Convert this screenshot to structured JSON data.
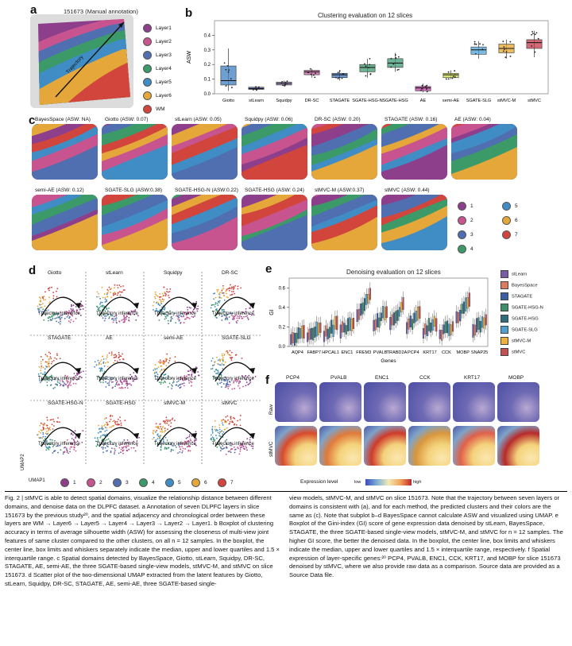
{
  "panel_a": {
    "label": "a",
    "title": "151673 (Manual annotation)",
    "trajectory_label": "Trajectory",
    "legend": [
      {
        "name": "Layer1",
        "color": "#8e3f8c"
      },
      {
        "name": "Layer2",
        "color": "#c7548e"
      },
      {
        "name": "Layer3",
        "color": "#4f6fb0"
      },
      {
        "name": "Layer4",
        "color": "#3b9a68"
      },
      {
        "name": "Layer5",
        "color": "#3f8dc4"
      },
      {
        "name": "Layer6",
        "color": "#e5a73a"
      },
      {
        "name": "WM",
        "color": "#d1453d"
      }
    ]
  },
  "panel_b": {
    "label": "b",
    "chart_data": {
      "type": "box",
      "title": "Clustering evaluation on 12 slices",
      "ylabel": "ASW",
      "ylim": [
        0,
        0.5
      ],
      "yticks": [
        "0.0",
        "0.1",
        "0.2",
        "0.3",
        "0.4"
      ],
      "categories": [
        "Giotto",
        "stLearn",
        "Squidpy",
        "DR-SC",
        "STAGATE",
        "SGATE-HSG-N",
        "SGATE-HSG",
        "AE",
        "semi-AE",
        "SGATE-SLG",
        "stMVC-M",
        "stMVC"
      ],
      "colors": [
        "#3f7fc1",
        "#3a4fa3",
        "#9b86cf",
        "#c05a9a",
        "#3e74bf",
        "#3e9a6c",
        "#3d9a74",
        "#c33fa0",
        "#cfe04a",
        "#4fa3d6",
        "#e6a531",
        "#c2374a"
      ],
      "boxes": [
        {
          "min": 0.02,
          "q1": 0.06,
          "median": 0.09,
          "q3": 0.19,
          "max": 0.31
        },
        {
          "min": 0.02,
          "q1": 0.03,
          "median": 0.035,
          "q3": 0.045,
          "max": 0.05
        },
        {
          "min": 0.05,
          "q1": 0.06,
          "median": 0.07,
          "q3": 0.08,
          "max": 0.09
        },
        {
          "min": 0.11,
          "q1": 0.13,
          "median": 0.15,
          "q3": 0.16,
          "max": 0.17
        },
        {
          "min": 0.09,
          "q1": 0.11,
          "median": 0.13,
          "q3": 0.14,
          "max": 0.16
        },
        {
          "min": 0.11,
          "q1": 0.15,
          "median": 0.18,
          "q3": 0.2,
          "max": 0.24
        },
        {
          "min": 0.15,
          "q1": 0.18,
          "median": 0.21,
          "q3": 0.24,
          "max": 0.28
        },
        {
          "min": 0.01,
          "q1": 0.02,
          "median": 0.04,
          "q3": 0.05,
          "max": 0.07
        },
        {
          "min": 0.1,
          "q1": 0.11,
          "median": 0.13,
          "q3": 0.14,
          "max": 0.16
        },
        {
          "min": 0.24,
          "q1": 0.27,
          "median": 0.3,
          "q3": 0.32,
          "max": 0.36
        },
        {
          "min": 0.24,
          "q1": 0.28,
          "median": 0.31,
          "q3": 0.34,
          "max": 0.37
        },
        {
          "min": 0.25,
          "q1": 0.31,
          "median": 0.35,
          "q3": 0.37,
          "max": 0.43
        }
      ]
    }
  },
  "panel_c": {
    "label": "c",
    "tiles_row1": [
      "BayesSpace (ASW: NA)",
      "Giotto (ASW: 0.07)",
      "stLearn (ASW: 0.05)",
      "Squidpy (ASW: 0.06)",
      "DR-SC (ASW: 0.20)",
      "STAGATE (ASW: 0.16)",
      "AE (ASW: 0.04)"
    ],
    "tiles_row2": [
      "semi-AE (ASW: 0.12)",
      "SGATE-SLG (ASW:0.38)",
      "SGATE-HSG-N (ASW:0.22)",
      "SGATE-HSG (ASW: 0.24)",
      "stMVC-M (ASW:0.37)",
      "stMVC (ASW: 0.44)"
    ],
    "legend": [
      {
        "name": "1",
        "color": "#8e3f8c"
      },
      {
        "name": "2",
        "color": "#c7548e"
      },
      {
        "name": "3",
        "color": "#4f6fb0"
      },
      {
        "name": "4",
        "color": "#3b9a68"
      },
      {
        "name": "5",
        "color": "#3f8dc4"
      },
      {
        "name": "6",
        "color": "#e5a73a"
      },
      {
        "name": "7",
        "color": "#d1453d"
      }
    ]
  },
  "panel_d": {
    "label": "d",
    "methods": [
      "Giotto",
      "stLearn",
      "Squidpy",
      "DR-SC",
      "STAGATE",
      "AE",
      "semi-AE",
      "SGATE-SLG",
      "SGATE-HSG-N",
      "SGATE-HSG",
      "stMVC-M",
      "stMVC"
    ],
    "trajectory_label": "Trajectory inference",
    "axis_x": "UMAP1",
    "axis_y": "UMAP2",
    "legend": [
      "1",
      "2",
      "3",
      "4",
      "5",
      "6",
      "7"
    ]
  },
  "panel_e": {
    "label": "e",
    "chart_data": {
      "type": "box",
      "title": "Denoising evaluation on 12 slices",
      "ylabel": "GI",
      "xlabel": "Genes",
      "yticks": [
        "0.0",
        "0.2",
        "0.4",
        "0.6"
      ],
      "ylim": [
        0,
        0.7
      ],
      "genes": [
        "AQP4",
        "FABP7",
        "HPCAL1",
        "ENC1",
        "FREM3",
        "PVALB",
        "TRABD2A",
        "PCP4",
        "KRT17",
        "CCK",
        "MOBP",
        "SNAP25"
      ],
      "methods": [
        "stLearn",
        "BayesSpace",
        "STAGATE",
        "SGATE-HSG-N",
        "SGATE-HSG",
        "SGATE-SLG",
        "stMVC-M",
        "stMVC"
      ],
      "colors": [
        "#7b5aa6",
        "#e07a5f",
        "#3a5fa8",
        "#3d8f6a",
        "#2f6d7e",
        "#4fa0cf",
        "#f0b13a",
        "#c44e52"
      ],
      "gene_medians": [
        0.12,
        0.15,
        0.18,
        0.22,
        0.45,
        0.3,
        0.35,
        0.28,
        0.2,
        0.18,
        0.4,
        0.22
      ]
    }
  },
  "panel_f": {
    "label": "f",
    "genes": [
      "PCP4",
      "PVALB",
      "ENC1",
      "CCK",
      "KRT17",
      "MOBP"
    ],
    "row_raw": "Raw",
    "row_stmvc": "stMVC",
    "legend_title": "Expression level",
    "legend_low": "low",
    "legend_high": "high"
  },
  "caption": {
    "col1": "Fig. 2 | stMVC is able to detect spatial domains, visualize the relationship distance between different domains, and denoise data on the DLPFC dataset. a Annotation of seven DLPFC layers in slice 151673 by the previous study²⁰, and the spatial adjacency and chronological order between these layers are WM → Layer6 → Layer5 → Layer4 → Layer3 → Layer2 → Layer1. b Boxplot of clustering accuracy in terms of average silhouette width (ASW) for assessing the closeness of multi-view joint features of same cluster compared to the other clusters, on all n = 12 samples. In the boxplot, the center line, box limits and whiskers separately indicate the median, upper and lower quartiles and 1.5 × interquartile range. c Spatial domains detected by BayesSpace, Giotto, stLearn, Squidpy, DR-SC, STAGATE, AE, semi-AE, the three SGATE-based single-view models, stMVC-M, and stMVC on slice 151673. d Scatter plot of the two-dimensional UMAP extracted from the latent features by Giotto, stLearn, Squidpy, DR-SC, STAGATE, AE, semi-AE, three SGATE-based single-",
    "col2": "view models, stMVC-M, and stMVC on slice 151673. Note that the trajectory between seven layers or domains is consistent with (a), and for each method, the predicted clusters and their colors are the same as (c). Note that subplot b–d BayesSpace cannot calculate ASW and visualized using UMAP. e Boxplot of the Gini-index (GI) score of gene expression data denoised by stLearn, BayesSpace, STAGATE, the three SGATE-based single-view models, stMVC-M, and stMVC for n = 12 samples. The higher GI score, the better the denoised data. In the boxplot, the center line, box limits and whiskers indicate the median, upper and lower quartiles and 1.5 × interquartile range, respectively. f Spatial expression of layer-specific genes:²⁰ PCP4, PVALB, ENC1, CCK, KRT17, and MOBP for slice 151673 denoised by stMVC, where we also provide raw data as a comparison. Source data are provided as a Source Data file."
  }
}
